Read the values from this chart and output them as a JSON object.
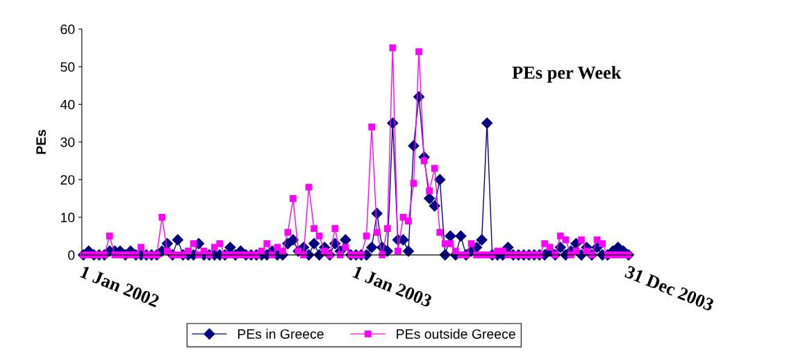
{
  "chart_data": {
    "type": "line",
    "title": "PEs per Week",
    "ylabel": "PEs",
    "categories": [
      "1 Jan 2002",
      null,
      null,
      null,
      null,
      null,
      null,
      null,
      null,
      null,
      null,
      null,
      null,
      null,
      null,
      null,
      null,
      null,
      null,
      null,
      null,
      null,
      null,
      null,
      null,
      null,
      null,
      null,
      null,
      null,
      null,
      null,
      null,
      null,
      null,
      null,
      null,
      null,
      null,
      null,
      null,
      null,
      null,
      null,
      null,
      null,
      null,
      null,
      null,
      null,
      null,
      null,
      "1 Jan 2003",
      null,
      null,
      null,
      null,
      null,
      null,
      null,
      null,
      null,
      null,
      null,
      null,
      null,
      null,
      null,
      null,
      null,
      null,
      null,
      null,
      null,
      null,
      null,
      null,
      null,
      null,
      null,
      null,
      null,
      null,
      null,
      null,
      null,
      null,
      null,
      null,
      null,
      null,
      null,
      null,
      null,
      null,
      null,
      null,
      null,
      null,
      null,
      null,
      null,
      null,
      null,
      "31 Dec 2003"
    ],
    "series": [
      {
        "name": "PEs in Greece",
        "color": "#000080",
        "marker": "diamond",
        "values": [
          0,
          1,
          0,
          0,
          0,
          1,
          1,
          1,
          0,
          1,
          0,
          0,
          0,
          0,
          0,
          1,
          3,
          0,
          4,
          0,
          0,
          0,
          3,
          0,
          0,
          0,
          0,
          0,
          2,
          0,
          1,
          0,
          0,
          0,
          0,
          0,
          1,
          0,
          0,
          3,
          4,
          1,
          2,
          0,
          3,
          0,
          2,
          0,
          3,
          1,
          4,
          0,
          0,
          0,
          0,
          2,
          11,
          2,
          1,
          35,
          4,
          4,
          1,
          29,
          42,
          26,
          15,
          13,
          20,
          0,
          5,
          0,
          5,
          0,
          1,
          2,
          4,
          35,
          0,
          0,
          0,
          2,
          0,
          0,
          0,
          0,
          0,
          0,
          0,
          1,
          0,
          2,
          0,
          1,
          3,
          0,
          2,
          0,
          2,
          0,
          0,
          1,
          2,
          1,
          0
        ]
      },
      {
        "name": "PEs outside Greece",
        "color": "#ff00ff",
        "marker": "square",
        "values": [
          0,
          0,
          0,
          0,
          0,
          5,
          0,
          0,
          0,
          0,
          0,
          2,
          0,
          0,
          0,
          10,
          1,
          0,
          0,
          0,
          1,
          3,
          0,
          1,
          0,
          2,
          3,
          0,
          0,
          0,
          0,
          0,
          0,
          0,
          1,
          3,
          0,
          2,
          1,
          6,
          15,
          1,
          0,
          18,
          7,
          5,
          1,
          0,
          7,
          0,
          2,
          0,
          0,
          0,
          5,
          34,
          6,
          0,
          7,
          55,
          1,
          10,
          9,
          19,
          54,
          25,
          17,
          23,
          6,
          3,
          3,
          1,
          0,
          0,
          3,
          0,
          0,
          0,
          0,
          1,
          1,
          0,
          0,
          0,
          0,
          0,
          0,
          0,
          3,
          2,
          0,
          5,
          4,
          0,
          1,
          4,
          1,
          0,
          4,
          3,
          0,
          0,
          0,
          0,
          0
        ]
      }
    ],
    "ylim": [
      0,
      60
    ],
    "yticks": [
      0,
      10,
      20,
      30,
      40,
      50,
      60
    ],
    "grid": false,
    "legend": "bottom",
    "line_style": "solid"
  }
}
